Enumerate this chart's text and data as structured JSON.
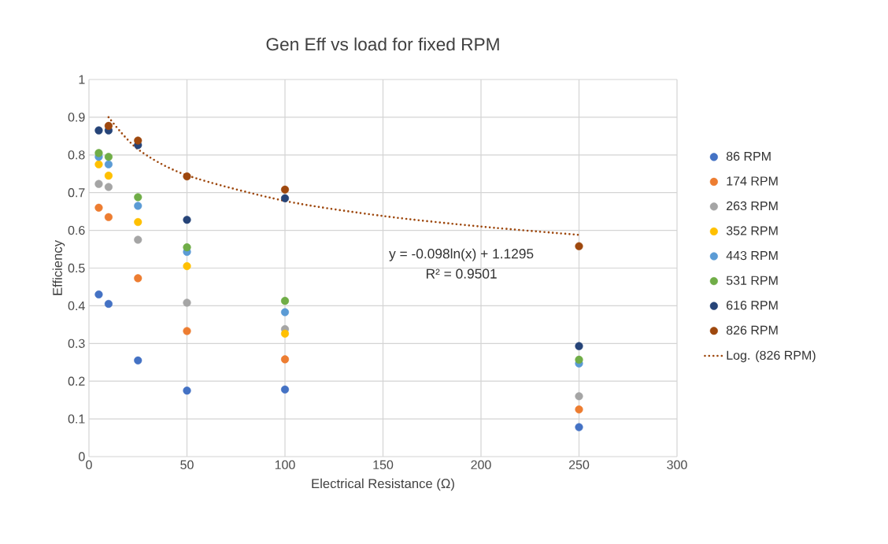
{
  "chart_data": {
    "type": "scatter",
    "title": "Gen Eff vs load for fixed RPM",
    "xlabel": "Electrical Resistance (Ω)",
    "ylabel": "Efficiency",
    "x": [
      5,
      10,
      25,
      50,
      100,
      250
    ],
    "series": [
      {
        "name": "86 RPM",
        "color": "#4472c4",
        "values": [
          0.43,
          0.405,
          0.255,
          0.175,
          0.178,
          0.078
        ]
      },
      {
        "name": "174 RPM",
        "color": "#ed7d31",
        "values": [
          0.66,
          0.635,
          0.473,
          0.333,
          0.258,
          0.125
        ]
      },
      {
        "name": "263 RPM",
        "color": "#a5a5a5",
        "values": [
          0.723,
          0.715,
          0.575,
          0.408,
          0.338,
          0.16
        ]
      },
      {
        "name": "352 RPM",
        "color": "#ffc000",
        "values": [
          0.775,
          0.745,
          0.622,
          0.505,
          0.326,
          null
        ]
      },
      {
        "name": "443 RPM",
        "color": "#5b9bd5",
        "values": [
          0.795,
          0.775,
          0.665,
          0.543,
          0.383,
          0.247
        ]
      },
      {
        "name": "531 RPM",
        "color": "#70ad47",
        "values": [
          0.805,
          0.795,
          0.688,
          0.555,
          0.413,
          0.257
        ]
      },
      {
        "name": "616 RPM",
        "color": "#264478",
        "values": [
          0.865,
          0.865,
          0.826,
          0.628,
          0.685,
          0.293
        ]
      },
      {
        "name": "826 RPM",
        "color": "#9e480e",
        "values": [
          null,
          0.877,
          0.838,
          0.743,
          0.708,
          0.558
        ]
      },
      {
        "name": "Log. (826 RPM)",
        "type": "line",
        "line_style": "dotted",
        "marker": "none",
        "color": "#9e480e",
        "x": [
          10,
          25,
          50,
          100,
          150,
          200,
          250
        ],
        "values": [
          0.9,
          0.815,
          0.746,
          0.678,
          0.638,
          0.61,
          0.588
        ]
      }
    ],
    "annotations": [
      "y = -0.098ln(x) + 1.1295",
      "R² = 0.9501"
    ],
    "xlim": [
      0,
      300
    ],
    "xticks": [
      0,
      50,
      100,
      150,
      200,
      250,
      300
    ],
    "ylim": [
      0,
      1
    ],
    "yticks": [
      0,
      0.1,
      0.2,
      0.3,
      0.4,
      0.5,
      0.6,
      0.7,
      0.8,
      0.9,
      1
    ],
    "grid": true,
    "legend": "right",
    "marker": "circle"
  }
}
